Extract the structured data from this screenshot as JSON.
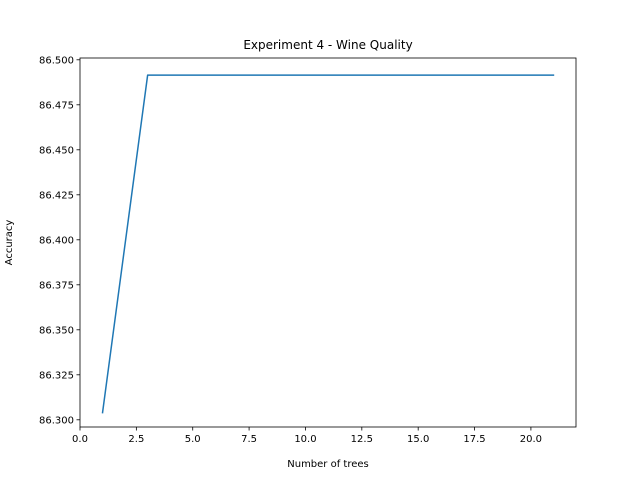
{
  "chart_data": {
    "type": "line",
    "title": "Experiment 4 - Wine Quality",
    "xlabel": "Number of trees",
    "ylabel": "Accuracy",
    "xlim": [
      0,
      22
    ],
    "ylim": [
      86.296,
      86.501
    ],
    "xticks": [
      0.0,
      2.5,
      5.0,
      7.5,
      10.0,
      12.5,
      15.0,
      17.5,
      20.0
    ],
    "xtick_labels": [
      "0.0",
      "2.5",
      "5.0",
      "7.5",
      "10.0",
      "12.5",
      "15.0",
      "17.5",
      "20.0"
    ],
    "yticks": [
      86.3,
      86.325,
      86.35,
      86.375,
      86.4,
      86.425,
      86.45,
      86.475,
      86.5
    ],
    "ytick_labels": [
      "86.300",
      "86.325",
      "86.350",
      "86.375",
      "86.400",
      "86.425",
      "86.450",
      "86.475",
      "86.500"
    ],
    "grid": false,
    "series": [
      {
        "color": "#1f77b4",
        "x": [
          1,
          3,
          5,
          7,
          9,
          11,
          13,
          15,
          17,
          19,
          21
        ],
        "y": [
          86.304,
          86.4915,
          86.4915,
          86.4915,
          86.4915,
          86.4915,
          86.4915,
          86.4915,
          86.4915,
          86.4915,
          86.4915
        ]
      }
    ]
  }
}
